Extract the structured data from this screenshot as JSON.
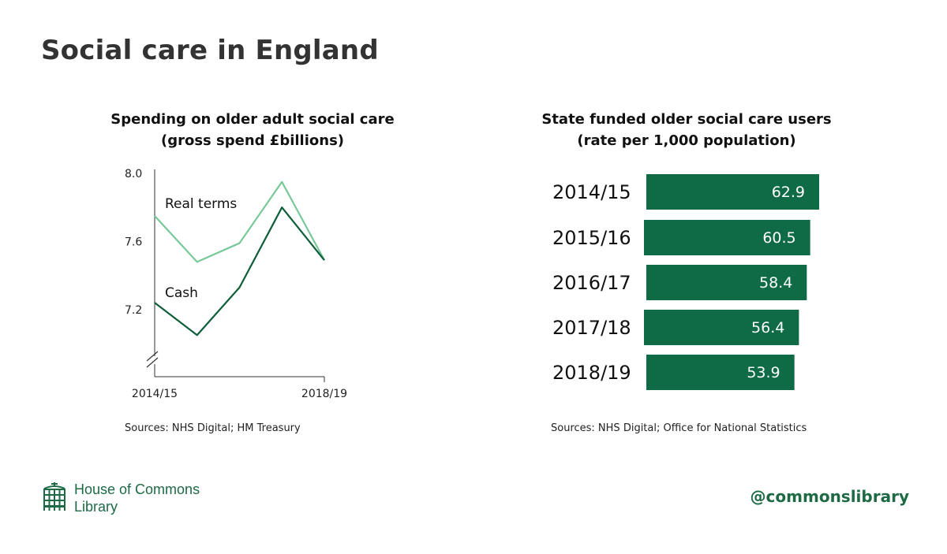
{
  "title": "Social care in England",
  "left_chart": {
    "title_line1": "Spending on older adult social care",
    "title_line2": "(gross spend £billions)",
    "source": "Sources: NHS Digital; HM Treasury"
  },
  "right_chart": {
    "title_line1": "State funded older social care users",
    "title_line2": "(rate per 1,000 population)",
    "source": "Sources: NHS Digital; Office for National Statistics"
  },
  "footer": {
    "logo_line1": "House of Commons",
    "logo_line2": "Library",
    "handle": "@commonslibrary"
  },
  "colors": {
    "cash": "#0e5e3a",
    "real_terms": "#78c89a",
    "bar": "#0e6b45",
    "brand": "#1d6a44"
  },
  "chart_data": [
    {
      "type": "line",
      "title": "Spending on older adult social care (gross spend £billions)",
      "x": [
        "2014/15",
        "2015/16",
        "2016/17",
        "2017/18",
        "2018/19"
      ],
      "x_tick_labels": [
        "2014/15",
        "2018/19"
      ],
      "ylim": [
        6.9,
        8.0
      ],
      "y_ticks": [
        "8.0",
        "7.6",
        "7.2"
      ],
      "axis_break": true,
      "grid": false,
      "series": [
        {
          "name": "Real terms",
          "values": [
            7.75,
            7.48,
            7.59,
            7.95,
            7.49
          ],
          "color": "#78c89a"
        },
        {
          "name": "Cash",
          "values": [
            7.24,
            7.05,
            7.33,
            7.8,
            7.49
          ],
          "color": "#0e5e3a"
        }
      ]
    },
    {
      "type": "bar",
      "orientation": "horizontal",
      "title": "State funded older social care users (rate per 1,000 population)",
      "categories": [
        "2014/15",
        "2015/16",
        "2016/17",
        "2017/18",
        "2018/19"
      ],
      "values": [
        62.9,
        60.5,
        58.4,
        56.4,
        53.9
      ],
      "value_labels": [
        "62.9",
        "60.5",
        "58.4",
        "56.4",
        "53.9"
      ],
      "color": "#0e6b45"
    }
  ]
}
